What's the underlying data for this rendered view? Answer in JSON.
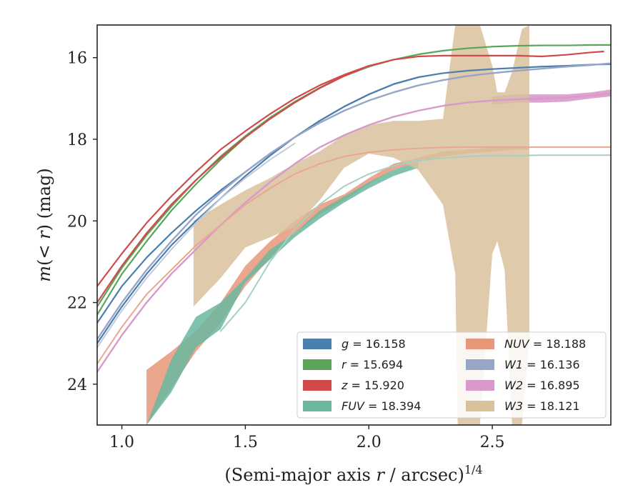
{
  "chart_data": {
    "type": "line",
    "xlabel": "(Semi-major axis r / arcsec)",
    "xlabel_exp": "1/4",
    "ylabel": "m(< r) (mag)",
    "xlim": [
      0.9,
      2.98
    ],
    "ylim": [
      25.0,
      15.2
    ],
    "y_inverted": true,
    "grid": false,
    "legend_position": "lower-right",
    "x_ticks": [
      1.0,
      1.5,
      2.0,
      2.5
    ],
    "x_tick_labels": [
      "1.0",
      "1.5",
      "2.0",
      "2.5"
    ],
    "y_ticks": [
      16,
      18,
      20,
      22,
      24
    ],
    "y_tick_labels": [
      "16",
      "18",
      "20",
      "22",
      "24"
    ],
    "series": [
      {
        "name": "g = 16.158",
        "label_var": "g",
        "label_val": "16.158",
        "color": "#4a7fae",
        "kind": "line",
        "width": 2.2,
        "x": [
          0.9,
          1.0,
          1.1,
          1.2,
          1.3,
          1.4,
          1.5,
          1.6,
          1.7,
          1.8,
          1.9,
          2.0,
          2.1,
          2.2,
          2.3,
          2.4,
          2.5,
          2.6,
          2.7,
          2.8,
          2.9,
          2.98
        ],
        "y": [
          23.0,
          22.1,
          21.3,
          20.6,
          20.0,
          19.45,
          18.9,
          18.4,
          17.95,
          17.55,
          17.2,
          16.9,
          16.65,
          16.48,
          16.38,
          16.32,
          16.28,
          16.25,
          16.22,
          16.2,
          16.17,
          16.16
        ]
      },
      {
        "name": "g = 16.158",
        "label_var": "g",
        "label_val": "16.158",
        "color": "#4a7fae",
        "kind": "line",
        "width": 2.2,
        "x": [
          0.9,
          1.0,
          1.1,
          1.2,
          1.3,
          1.4,
          1.5,
          1.6,
          1.7,
          1.8,
          1.9,
          2.0,
          2.1,
          2.2
        ],
        "y": [
          22.5,
          21.6,
          20.9,
          20.3,
          19.75,
          19.25,
          18.8,
          18.35,
          17.95,
          17.55,
          17.2,
          16.9,
          16.65,
          16.48
        ]
      },
      {
        "name": "r = 15.694",
        "label_var": "r",
        "label_val": "15.694",
        "color": "#5aa55a",
        "kind": "line",
        "width": 2.2,
        "x": [
          0.9,
          1.0,
          1.1,
          1.2,
          1.3,
          1.4,
          1.5,
          1.6,
          1.7,
          1.8,
          1.9,
          2.0,
          2.1,
          2.2,
          2.3,
          2.4,
          2.5,
          2.6,
          2.7,
          2.8,
          2.9,
          2.98
        ],
        "y": [
          22.3,
          21.3,
          20.5,
          19.75,
          19.1,
          18.5,
          17.95,
          17.5,
          17.1,
          16.75,
          16.45,
          16.22,
          16.05,
          15.92,
          15.83,
          15.77,
          15.73,
          15.71,
          15.7,
          15.7,
          15.69,
          15.69
        ]
      },
      {
        "name": "r = 15.694",
        "label_var": "r",
        "label_val": "15.694",
        "color": "#5aa55a",
        "kind": "line",
        "width": 2.2,
        "x": [
          0.9,
          1.0,
          1.1,
          1.2,
          1.3,
          1.4,
          1.5,
          1.6,
          1.7,
          1.8,
          1.9,
          2.0
        ],
        "y": [
          22.1,
          21.15,
          20.35,
          19.65,
          19.0,
          18.42,
          17.92,
          17.47,
          17.08,
          16.74,
          16.44,
          16.22
        ]
      },
      {
        "name": "z = 15.920",
        "label_var": "z",
        "label_val": "15.920",
        "color": "#d14a4a",
        "kind": "line",
        "width": 2.2,
        "x": [
          0.9,
          1.0,
          1.1,
          1.2,
          1.3,
          1.4,
          1.5,
          1.6,
          1.7,
          1.8,
          1.9,
          2.0,
          2.1,
          2.2,
          2.3,
          2.4,
          2.5,
          2.6,
          2.7,
          2.8,
          2.9,
          2.95
        ],
        "y": [
          21.6,
          20.8,
          20.05,
          19.4,
          18.8,
          18.25,
          17.8,
          17.38,
          17.0,
          16.68,
          16.42,
          16.2,
          16.05,
          15.97,
          15.95,
          15.95,
          15.95,
          15.95,
          15.97,
          15.93,
          15.87,
          15.85
        ]
      },
      {
        "name": "z = 15.920",
        "label_var": "z",
        "label_val": "15.920",
        "color": "#d14a4a",
        "kind": "line",
        "width": 2.2,
        "x": [
          0.9,
          1.0,
          1.1,
          1.2,
          1.3,
          1.4,
          1.5,
          1.6,
          1.7,
          1.8,
          1.9,
          2.0
        ],
        "y": [
          22.0,
          21.1,
          20.3,
          19.6,
          19.0,
          18.45,
          17.95,
          17.5,
          17.1,
          16.75,
          16.45,
          16.2
        ]
      },
      {
        "name": "W1 = 16.136",
        "label_var": "W1",
        "label_val": "16.136",
        "color": "#97a6c7",
        "kind": "line",
        "width": 2.4,
        "x": [
          0.9,
          1.0,
          1.1,
          1.2,
          1.3,
          1.4,
          1.5,
          1.6,
          1.7,
          1.8,
          1.9,
          2.0,
          2.1,
          2.2,
          2.3,
          2.4,
          2.5,
          2.6,
          2.7,
          2.8,
          2.9,
          2.98
        ],
        "y": [
          22.9,
          22.0,
          21.2,
          20.5,
          19.85,
          19.3,
          18.8,
          18.35,
          17.95,
          17.6,
          17.3,
          17.05,
          16.85,
          16.68,
          16.55,
          16.45,
          16.38,
          16.32,
          16.27,
          16.22,
          16.18,
          16.14
        ]
      },
      {
        "name": "W1 = 16.136",
        "label_var": "W1",
        "label_val": "16.136",
        "color": "#c4cadc",
        "kind": "line",
        "width": 2.0,
        "x": [
          0.9,
          1.0,
          1.1,
          1.2,
          1.3,
          1.4,
          1.5,
          1.6,
          1.7
        ],
        "y": [
          23.1,
          22.2,
          21.4,
          20.7,
          20.05,
          19.45,
          18.95,
          18.5,
          18.1
        ]
      },
      {
        "name": "W2 = 16.895",
        "label_var": "W2",
        "label_val": "16.895",
        "color": "#d89acb",
        "kind": "line",
        "width": 2.4,
        "x": [
          0.9,
          1.0,
          1.1,
          1.2,
          1.3,
          1.4,
          1.5,
          1.6,
          1.7,
          1.8,
          1.9,
          2.0,
          2.1,
          2.2,
          2.3,
          2.4,
          2.5,
          2.6,
          2.7,
          2.8,
          2.9,
          2.98
        ],
        "y": [
          23.7,
          22.8,
          22.0,
          21.3,
          20.7,
          20.1,
          19.55,
          19.05,
          18.6,
          18.2,
          17.9,
          17.65,
          17.45,
          17.3,
          17.18,
          17.1,
          17.05,
          17.02,
          17.0,
          16.98,
          16.93,
          16.88
        ]
      },
      {
        "name": "NUV = 18.188",
        "label_var": "NUV",
        "label_val": "18.188",
        "color": "#eaa790",
        "kind": "line",
        "width": 2.0,
        "x": [
          0.9,
          1.0,
          1.1,
          1.2,
          1.3,
          1.4,
          1.5,
          1.6,
          1.7,
          1.8,
          1.9,
          2.0,
          2.1,
          2.2,
          2.3,
          2.4,
          2.5,
          2.6,
          2.7,
          2.8,
          2.9,
          2.98
        ],
        "y": [
          23.5,
          22.6,
          21.8,
          21.2,
          20.6,
          20.1,
          19.6,
          19.2,
          18.85,
          18.6,
          18.42,
          18.32,
          18.26,
          18.22,
          18.2,
          18.19,
          18.19,
          18.19,
          18.19,
          18.19,
          18.19,
          18.19
        ]
      },
      {
        "name": "FUV = 18.394",
        "label_var": "FUV",
        "label_val": "18.394",
        "color": "#a6d0c4",
        "kind": "line",
        "width": 2.0,
        "x": [
          1.4,
          1.5,
          1.6,
          1.7,
          1.8,
          1.9,
          2.0,
          2.1,
          2.2,
          2.3,
          2.4,
          2.5,
          2.6,
          2.7,
          2.8,
          2.9,
          2.98
        ],
        "y": [
          22.7,
          22.0,
          21.0,
          20.2,
          19.6,
          19.15,
          18.85,
          18.65,
          18.52,
          18.46,
          18.42,
          18.4,
          18.4,
          18.39,
          18.39,
          18.39,
          18.39
        ]
      },
      {
        "name": "NUV = 18.188",
        "label_var": "NUV",
        "label_val": "18.188",
        "color": "#e8987a",
        "kind": "band",
        "opacity": 0.85,
        "x": [
          1.1,
          1.2,
          1.3,
          1.4,
          1.5,
          1.6,
          1.7,
          1.8,
          1.9,
          2.0,
          2.1,
          2.2,
          2.3,
          2.4,
          2.5,
          2.6,
          2.65
        ],
        "y_upper": [
          23.65,
          23.2,
          22.7,
          22.0,
          21.1,
          20.5,
          20.0,
          19.6,
          19.35,
          18.95,
          18.6,
          18.45,
          18.3,
          18.25,
          18.2,
          18.18,
          18.18
        ],
        "y_lower": [
          25.0,
          24.1,
          23.2,
          22.5,
          21.6,
          20.9,
          20.3,
          19.85,
          19.5,
          19.1,
          18.75,
          18.55,
          18.42,
          18.35,
          18.3,
          18.25,
          18.25
        ]
      },
      {
        "name": "FUV = 18.394",
        "label_var": "FUV",
        "label_val": "18.394",
        "color": "#6bb7a0",
        "kind": "band",
        "opacity": 0.85,
        "x": [
          1.1,
          1.2,
          1.3,
          1.4,
          1.5,
          1.6,
          1.7,
          1.8,
          1.9,
          2.0,
          2.1,
          2.2
        ],
        "y_upper": [
          25.0,
          23.4,
          22.35,
          22.0,
          21.4,
          20.7,
          20.3,
          19.75,
          19.4,
          19.05,
          18.75,
          18.55
        ],
        "y_lower": [
          25.0,
          24.2,
          23.1,
          22.65,
          21.5,
          20.95,
          20.4,
          19.95,
          19.55,
          19.2,
          18.9,
          18.7
        ]
      },
      {
        "name": "W2 = 16.895",
        "label_var": "W2",
        "label_val": "16.895",
        "color": "#d89acb",
        "kind": "band",
        "opacity": 0.9,
        "x": [
          2.5,
          2.6,
          2.7,
          2.8,
          2.9,
          2.98
        ],
        "y_upper": [
          16.95,
          16.9,
          16.9,
          16.9,
          16.85,
          16.78
        ],
        "y_lower": [
          17.15,
          17.1,
          17.1,
          17.08,
          17.0,
          16.95
        ]
      },
      {
        "name": "W3 = 18.121",
        "label_var": "W3",
        "label_val": "18.121",
        "color": "#d9c19c",
        "kind": "band",
        "opacity": 0.85,
        "x": [
          1.29,
          1.4,
          1.5,
          1.6,
          1.7,
          1.8,
          1.9,
          2.0,
          2.1,
          2.2,
          2.3,
          2.35,
          2.36,
          2.4,
          2.45,
          2.5,
          2.52,
          2.55,
          2.58,
          2.62,
          2.65
        ],
        "y_upper": [
          20.0,
          19.6,
          19.25,
          18.95,
          18.6,
          18.3,
          17.9,
          17.65,
          17.55,
          17.55,
          17.5,
          15.2,
          15.2,
          15.2,
          15.2,
          16.2,
          16.85,
          16.85,
          16.35,
          15.3,
          15.2
        ],
        "y_lower": [
          22.1,
          21.4,
          20.65,
          20.4,
          20.15,
          19.5,
          18.7,
          18.35,
          18.45,
          18.75,
          19.6,
          21.3,
          25.0,
          25.0,
          25.0,
          20.8,
          20.5,
          21.2,
          25.0,
          25.0,
          22.9
        ]
      }
    ],
    "legend": [
      {
        "var": "g",
        "val": "16.158",
        "color": "#4a7fae"
      },
      {
        "var": "r",
        "val": "15.694",
        "color": "#5aa55a"
      },
      {
        "var": "z",
        "val": "15.920",
        "color": "#d14a4a"
      },
      {
        "var": "FUV",
        "val": "18.394",
        "color": "#6bb7a0"
      },
      {
        "var": "NUV",
        "val": "18.188",
        "color": "#e8987a"
      },
      {
        "var": "W1",
        "val": "16.136",
        "color": "#97a6c7"
      },
      {
        "var": "W2",
        "val": "16.895",
        "color": "#d89acb"
      },
      {
        "var": "W3",
        "val": "18.121",
        "color": "#d9c19c"
      }
    ]
  }
}
